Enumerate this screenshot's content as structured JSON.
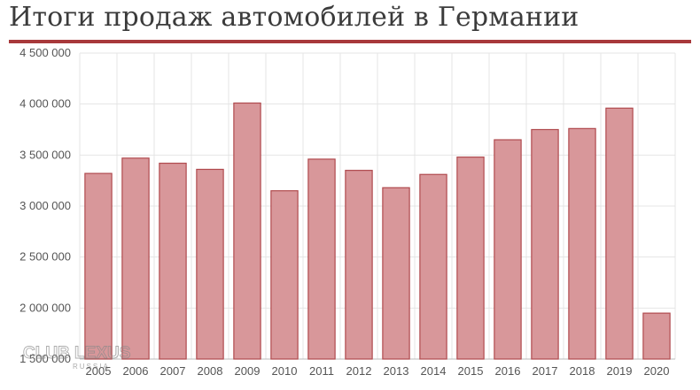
{
  "title": "Итоги продаж автомобилей в Германии",
  "watermark": {
    "text": "CLUB LEXUS",
    "subtext": "RUSSIA"
  },
  "colors": {
    "bar_fill": "#d8979a",
    "bar_stroke": "#b04a4e",
    "title_rule": "#a8393b",
    "grid": "#e4e4e4"
  },
  "chart_data": {
    "type": "bar",
    "categories": [
      "2005",
      "2006",
      "2007",
      "2008",
      "2009",
      "2010",
      "2011",
      "2012",
      "2013",
      "2014",
      "2015",
      "2016",
      "2017",
      "2018",
      "2019",
      "2020"
    ],
    "values": [
      3320000,
      3470000,
      3420000,
      3360000,
      4010000,
      3150000,
      3460000,
      3350000,
      3180000,
      3310000,
      3480000,
      3650000,
      3750000,
      3760000,
      3960000,
      1950000
    ],
    "title": "Итоги продаж автомобилей в Германии",
    "ylim": [
      1500000,
      4500000
    ],
    "yticks": [
      1500000,
      2000000,
      2500000,
      3000000,
      3500000,
      4000000,
      4500000
    ],
    "ytick_labels": [
      "1 500 000",
      "2 000 000",
      "2 500 000",
      "3 000 000",
      "3 500 000",
      "4 000 000",
      "4 500 000"
    ],
    "grid": true
  }
}
